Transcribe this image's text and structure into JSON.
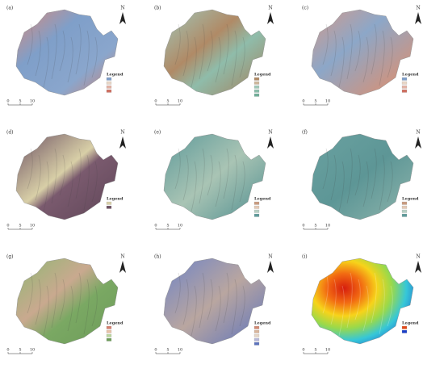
{
  "panels": [
    {
      "label": "(a)",
      "legend_title": "Legend"
    },
    {
      "label": "(b)",
      "legend_title": "Legend"
    },
    {
      "label": "(c)",
      "legend_title": "Legend"
    },
    {
      "label": "(d)",
      "legend_title": "Legend"
    },
    {
      "label": "(e)",
      "legend_title": "Legend"
    },
    {
      "label": "(f)",
      "legend_title": "Legend"
    },
    {
      "label": "(g)",
      "legend_title": "Legend"
    },
    {
      "label": "(h)",
      "legend_title": "Legend"
    },
    {
      "label": "(i)",
      "legend_title": "Legend"
    }
  ],
  "north": "N",
  "scale": [
    "0",
    "5",
    "10"
  ]
}
